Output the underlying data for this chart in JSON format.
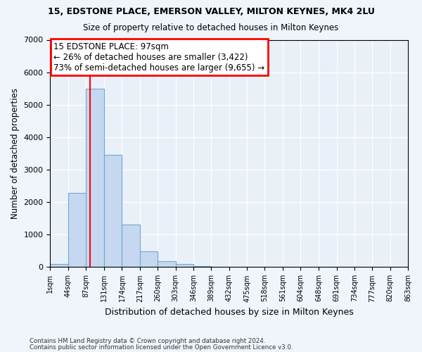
{
  "title": "15, EDSTONE PLACE, EMERSON VALLEY, MILTON KEYNES, MK4 2LU",
  "subtitle": "Size of property relative to detached houses in Milton Keynes",
  "xlabel": "Distribution of detached houses by size in Milton Keynes",
  "ylabel": "Number of detached properties",
  "bin_edges": [
    1,
    44,
    87,
    131,
    174,
    217,
    260,
    303,
    346,
    389,
    432,
    475,
    518,
    561,
    604,
    648,
    691,
    734,
    777,
    820,
    863
  ],
  "bar_heights": [
    100,
    2280,
    5500,
    3450,
    1310,
    490,
    180,
    100,
    40,
    15,
    5,
    3,
    2,
    1,
    0,
    0,
    0,
    0,
    0,
    0
  ],
  "bar_color": "#c5d8f0",
  "bar_edgecolor": "#6aaad4",
  "property_size": 97,
  "annotation_line1": "15 EDSTONE PLACE: 97sqm",
  "annotation_line2": "← 26% of detached houses are smaller (3,422)",
  "annotation_line3": "73% of semi-detached houses are larger (9,655) →",
  "annotation_box_color": "white",
  "annotation_box_edgecolor": "red",
  "vline_color": "red",
  "ylim": [
    0,
    7000
  ],
  "tick_labels": [
    "1sqm",
    "44sqm",
    "87sqm",
    "131sqm",
    "174sqm",
    "217sqm",
    "260sqm",
    "303sqm",
    "346sqm",
    "389sqm",
    "432sqm",
    "475sqm",
    "518sqm",
    "561sqm",
    "604sqm",
    "648sqm",
    "691sqm",
    "734sqm",
    "777sqm",
    "820sqm",
    "863sqm"
  ],
  "footnote1": "Contains HM Land Registry data © Crown copyright and database right 2024.",
  "footnote2": "Contains public sector information licensed under the Open Government Licence v3.0.",
  "bg_color": "#f0f4fb",
  "plot_bg_color": "#eaf0f8"
}
